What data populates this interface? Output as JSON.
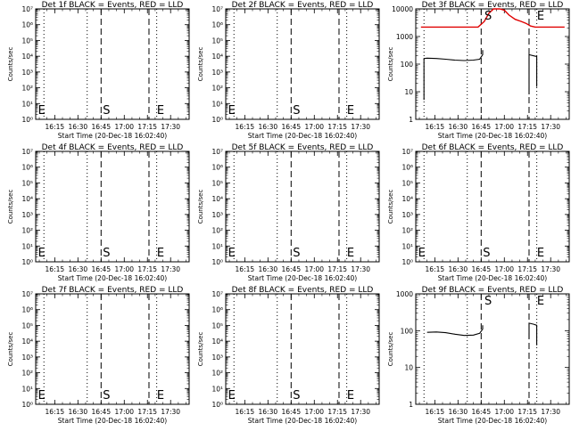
{
  "figure": {
    "background": "#ffffff",
    "events_color": "#000000",
    "lld_color": "#e00000"
  },
  "x_tick_labels": [
    "16:15",
    "16:30",
    "16:45",
    "17:00",
    "17:15",
    "17:30"
  ],
  "x_label": "Start Time (20-Dec-18 16:02:40)",
  "y_label": "Counts/sec",
  "panels": [
    {
      "title": "Det 1f BLACK = Events, RED = LLD"
    },
    {
      "title": "Det 2f BLACK = Events, RED = LLD"
    },
    {
      "title": "Det 3f BLACK = Events, RED = LLD"
    },
    {
      "title": "Det 4f BLACK = Events, RED = LLD"
    },
    {
      "title": "Det 5f BLACK = Events, RED = LLD"
    },
    {
      "title": "Det 6f BLACK = Events, RED = LLD"
    },
    {
      "title": "Det 7f BLACK = Events, RED = LLD"
    },
    {
      "title": "Det 8f BLACK = Events, RED = LLD"
    },
    {
      "title": "Det 9f BLACK = Events, RED = LLD"
    }
  ],
  "chart_data": [
    {
      "type": "line",
      "title": "Det 1f BLACK = Events, RED = LLD",
      "xlabel": "Start Time (20-Dec-18 16:02:40)",
      "ylabel": "Counts/sec",
      "y_scale": "log",
      "ylim": [
        1,
        10000000
      ],
      "xlim": [
        "16:02:40",
        "17:42"
      ],
      "y_tick_labels": [
        "10^0",
        "10^1",
        "10^2",
        "10^3",
        "10^4",
        "10^5",
        "10^6",
        "10^7"
      ],
      "x_tick_labels": [
        "16:15",
        "16:30",
        "16:45",
        "17:00",
        "17:15",
        "17:30"
      ],
      "dotted_lines": [
        "16:08",
        "16:36",
        "17:21"
      ],
      "dashed_lines": [
        "16:45",
        "17:16"
      ],
      "markers": [
        {
          "text": "E",
          "x": "16:03"
        },
        {
          "text": "S",
          "x": "16:45"
        },
        {
          "text": "E",
          "x": "17:20"
        }
      ],
      "series": []
    },
    {
      "type": "line",
      "title": "Det 2f BLACK = Events, RED = LLD",
      "xlabel": "Start Time (20-Dec-18 16:02:40)",
      "ylabel": "Counts/sec",
      "y_scale": "log",
      "ylim": [
        1,
        10000000
      ],
      "xlim": [
        "16:02:40",
        "17:42"
      ],
      "y_tick_labels": [
        "10^0",
        "10^1",
        "10^2",
        "10^3",
        "10^4",
        "10^5",
        "10^6",
        "10^7"
      ],
      "x_tick_labels": [
        "16:15",
        "16:30",
        "16:45",
        "17:00",
        "17:15",
        "17:30"
      ],
      "dotted_lines": [
        "16:08",
        "16:36",
        "17:21"
      ],
      "dashed_lines": [
        "16:45",
        "17:16"
      ],
      "markers": [
        {
          "text": "E",
          "x": "16:03"
        },
        {
          "text": "S",
          "x": "16:45"
        },
        {
          "text": "E",
          "x": "17:20"
        }
      ],
      "series": []
    },
    {
      "type": "line",
      "title": "Det 3f BLACK = Events, RED = LLD",
      "xlabel": "Start Time (20-Dec-18 16:02:40)",
      "ylabel": "Counts/sec",
      "y_scale": "log",
      "ylim": [
        1,
        10000
      ],
      "xlim": [
        "16:02:40",
        "17:42"
      ],
      "y_tick_labels": [
        "1",
        "10",
        "100",
        "1000",
        "10000"
      ],
      "x_tick_labels": [
        "16:15",
        "16:30",
        "16:45",
        "17:00",
        "17:15",
        "17:30"
      ],
      "dotted_lines": [
        "16:08",
        "16:36",
        "17:21"
      ],
      "dashed_lines": [
        "16:45",
        "17:16"
      ],
      "markers": [
        {
          "text": "S",
          "x": "16:46"
        },
        {
          "text": "E",
          "x": "17:20"
        }
      ],
      "series": [
        {
          "name": "LLD",
          "color": "#e00000",
          "points": [
            [
              "16:06",
              2200
            ],
            [
              "16:43",
              2200
            ],
            [
              "16:47",
              3500
            ],
            [
              "16:50",
              7000
            ],
            [
              "16:53",
              11000
            ],
            [
              "16:57",
              13000
            ],
            [
              "17:00",
              9000
            ],
            [
              "17:03",
              6000
            ],
            [
              "17:07",
              4200
            ],
            [
              "17:11",
              3500
            ],
            [
              "17:14",
              3000
            ],
            [
              "17:17",
              2400
            ],
            [
              "17:20",
              2200
            ],
            [
              "17:39",
              2200
            ]
          ]
        },
        {
          "name": "Events",
          "color": "#000000",
          "segments": [
            [
              [
                "16:08",
                5
              ],
              [
                "16:08",
                160
              ],
              [
                "16:10",
                165
              ],
              [
                "16:16",
                160
              ],
              [
                "16:22",
                150
              ],
              [
                "16:28",
                140
              ],
              [
                "16:34",
                135
              ],
              [
                "16:40",
                140
              ],
              [
                "16:44",
                150
              ],
              [
                "16:46",
                220
              ],
              [
                "16:46",
                320
              ]
            ],
            [
              [
                "17:16",
                8
              ],
              [
                "17:16",
                220
              ],
              [
                "17:19",
                200
              ],
              [
                "17:21",
                190
              ],
              [
                "17:21",
                15
              ]
            ]
          ]
        }
      ]
    },
    {
      "type": "line",
      "title": "Det 4f BLACK = Events, RED = LLD",
      "xlabel": "Start Time (20-Dec-18 16:02:40)",
      "ylabel": "Counts/sec",
      "y_scale": "log",
      "ylim": [
        1,
        10000000
      ],
      "xlim": [
        "16:02:40",
        "17:42"
      ],
      "y_tick_labels": [
        "10^0",
        "10^1",
        "10^2",
        "10^3",
        "10^4",
        "10^5",
        "10^6",
        "10^7"
      ],
      "x_tick_labels": [
        "16:15",
        "16:30",
        "16:45",
        "17:00",
        "17:15",
        "17:30"
      ],
      "dotted_lines": [
        "16:08",
        "16:36",
        "17:21"
      ],
      "dashed_lines": [
        "16:45",
        "17:16"
      ],
      "markers": [
        {
          "text": "E",
          "x": "16:03"
        },
        {
          "text": "S",
          "x": "16:45"
        },
        {
          "text": "E",
          "x": "17:20"
        }
      ],
      "series": []
    },
    {
      "type": "line",
      "title": "Det 5f BLACK = Events, RED = LLD",
      "xlabel": "Start Time (20-Dec-18 16:02:40)",
      "ylabel": "Counts/sec",
      "y_scale": "log",
      "ylim": [
        1,
        10000000
      ],
      "xlim": [
        "16:02:40",
        "17:42"
      ],
      "y_tick_labels": [
        "10^0",
        "10^1",
        "10^2",
        "10^3",
        "10^4",
        "10^5",
        "10^6",
        "10^7"
      ],
      "x_tick_labels": [
        "16:15",
        "16:30",
        "16:45",
        "17:00",
        "17:15",
        "17:30"
      ],
      "dotted_lines": [
        "16:08",
        "16:36",
        "17:21"
      ],
      "dashed_lines": [
        "16:45",
        "17:16"
      ],
      "markers": [
        {
          "text": "E",
          "x": "16:03"
        },
        {
          "text": "S",
          "x": "16:45"
        },
        {
          "text": "E",
          "x": "17:20"
        }
      ],
      "series": []
    },
    {
      "type": "line",
      "title": "Det 6f BLACK = Events, RED = LLD",
      "xlabel": "Start Time (20-Dec-18 16:02:40)",
      "ylabel": "Counts/sec",
      "y_scale": "log",
      "ylim": [
        1,
        10000000
      ],
      "xlim": [
        "16:02:40",
        "17:42"
      ],
      "y_tick_labels": [
        "10^0",
        "10^1",
        "10^2",
        "10^3",
        "10^4",
        "10^5",
        "10^6",
        "10^7"
      ],
      "x_tick_labels": [
        "16:15",
        "16:30",
        "16:45",
        "17:00",
        "17:15",
        "17:30"
      ],
      "dotted_lines": [
        "16:08",
        "16:36",
        "17:21"
      ],
      "dashed_lines": [
        "16:45",
        "17:16"
      ],
      "markers": [
        {
          "text": "E",
          "x": "16:03"
        },
        {
          "text": "S",
          "x": "16:45"
        },
        {
          "text": "E",
          "x": "17:20"
        }
      ],
      "series": []
    },
    {
      "type": "line",
      "title": "Det 7f BLACK = Events, RED = LLD",
      "xlabel": "Start Time (20-Dec-18 16:02:40)",
      "ylabel": "Counts/sec",
      "y_scale": "log",
      "ylim": [
        1,
        10000000
      ],
      "xlim": [
        "16:02:40",
        "17:42"
      ],
      "y_tick_labels": [
        "10^0",
        "10^1",
        "10^2",
        "10^3",
        "10^4",
        "10^5",
        "10^6",
        "10^7"
      ],
      "x_tick_labels": [
        "16:15",
        "16:30",
        "16:45",
        "17:00",
        "17:15",
        "17:30"
      ],
      "dotted_lines": [
        "16:08",
        "16:36",
        "17:21"
      ],
      "dashed_lines": [
        "16:45",
        "17:16"
      ],
      "markers": [
        {
          "text": "E",
          "x": "16:03"
        },
        {
          "text": "S",
          "x": "16:45"
        },
        {
          "text": "E",
          "x": "17:20"
        }
      ],
      "series": []
    },
    {
      "type": "line",
      "title": "Det 8f BLACK = Events, RED = LLD",
      "xlabel": "Start Time (20-Dec-18 16:02:40)",
      "ylabel": "Counts/sec",
      "y_scale": "log",
      "ylim": [
        1,
        10000000
      ],
      "xlim": [
        "16:02:40",
        "17:42"
      ],
      "y_tick_labels": [
        "10^0",
        "10^1",
        "10^2",
        "10^3",
        "10^4",
        "10^5",
        "10^6",
        "10^7"
      ],
      "x_tick_labels": [
        "16:15",
        "16:30",
        "16:45",
        "17:00",
        "17:15",
        "17:30"
      ],
      "dotted_lines": [
        "16:08",
        "16:36",
        "17:21"
      ],
      "dashed_lines": [
        "16:45",
        "17:16"
      ],
      "markers": [
        {
          "text": "E",
          "x": "16:03"
        },
        {
          "text": "S",
          "x": "16:45"
        },
        {
          "text": "E",
          "x": "17:20"
        }
      ],
      "series": []
    },
    {
      "type": "line",
      "title": "Det 9f BLACK = Events, RED = LLD",
      "xlabel": "Start Time (20-Dec-18 16:02:40)",
      "ylabel": "Counts/sec",
      "y_scale": "log",
      "ylim": [
        1,
        1000
      ],
      "xlim": [
        "16:02:40",
        "17:42"
      ],
      "y_tick_labels": [
        "1",
        "10",
        "100",
        "1000"
      ],
      "x_tick_labels": [
        "16:15",
        "16:30",
        "16:45",
        "17:00",
        "17:15",
        "17:30"
      ],
      "dotted_lines": [
        "16:08",
        "16:36",
        "17:21"
      ],
      "dashed_lines": [
        "16:45",
        "17:16"
      ],
      "markers": [
        {
          "text": "S",
          "x": "16:46"
        },
        {
          "text": "E",
          "x": "17:20"
        }
      ],
      "series": [
        {
          "name": "Events",
          "color": "#000000",
          "segments": [
            [
              [
                "16:10",
                90
              ],
              [
                "16:16",
                92
              ],
              [
                "16:22",
                88
              ],
              [
                "16:28",
                80
              ],
              [
                "16:34",
                74
              ],
              [
                "16:40",
                76
              ],
              [
                "16:44",
                85
              ],
              [
                "16:46",
                110
              ],
              [
                "16:46",
                140
              ]
            ],
            [
              [
                "17:16",
                60
              ],
              [
                "17:16",
                160
              ],
              [
                "17:19",
                150
              ],
              [
                "17:21",
                140
              ],
              [
                "17:21",
                40
              ]
            ]
          ]
        }
      ]
    }
  ]
}
